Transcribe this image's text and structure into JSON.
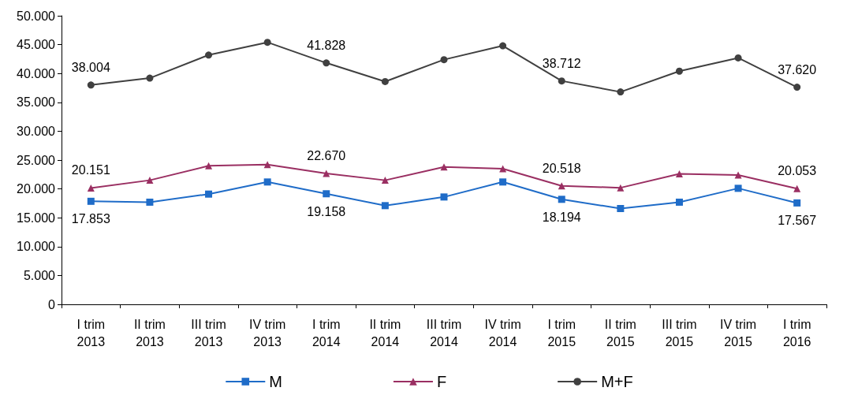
{
  "chart_data": {
    "type": "line",
    "categories": [
      "I trim\n2013",
      "II trim\n2013",
      "III trim\n2013",
      "IV trim\n2013",
      "I trim\n2014",
      "II trim\n2014",
      "III trim\n2014",
      "IV trim\n2014",
      "I trim\n2015",
      "II trim\n2015",
      "III trim\n2015",
      "IV trim\n2015",
      "I trim\n2016"
    ],
    "series": [
      {
        "name": "M",
        "color": "#1f6cc8",
        "marker": "square",
        "values": [
          17853,
          17700,
          19100,
          21200,
          19158,
          17100,
          18600,
          21200,
          18194,
          16600,
          17700,
          20100,
          17567
        ],
        "value_labels": [
          "17.853",
          null,
          null,
          null,
          "19.158",
          null,
          null,
          null,
          "18.194",
          null,
          null,
          null,
          "17.567"
        ]
      },
      {
        "name": "F",
        "color": "#9a2f62",
        "marker": "triangle",
        "values": [
          20151,
          21500,
          24000,
          24200,
          22670,
          21500,
          23800,
          23500,
          20518,
          20200,
          22600,
          22400,
          20053
        ],
        "value_labels": [
          "20.151",
          null,
          null,
          null,
          "22.670",
          null,
          null,
          null,
          "20.518",
          null,
          null,
          null,
          "20.053"
        ]
      },
      {
        "name": "M+F",
        "color": "#404040",
        "marker": "circle",
        "values": [
          38004,
          39200,
          43200,
          45400,
          41828,
          38600,
          42400,
          44800,
          38712,
          36800,
          40400,
          42700,
          37620
        ],
        "value_labels": [
          "38.004",
          null,
          null,
          null,
          "41.828",
          null,
          null,
          null,
          "38.712",
          null,
          null,
          null,
          "37.620"
        ]
      }
    ],
    "ylim": [
      0,
      50000
    ],
    "yticks": [
      {
        "value": 0,
        "label": "0"
      },
      {
        "value": 5000,
        "label": "5.000"
      },
      {
        "value": 10000,
        "label": "10.000"
      },
      {
        "value": 15000,
        "label": "15.000"
      },
      {
        "value": 20000,
        "label": "20.000"
      },
      {
        "value": 25000,
        "label": "25.000"
      },
      {
        "value": 30000,
        "label": "30.000"
      },
      {
        "value": 35000,
        "label": "35.000"
      },
      {
        "value": 40000,
        "label": "40.000"
      },
      {
        "value": 45000,
        "label": "45.000"
      },
      {
        "value": 50000,
        "label": "50.000"
      }
    ],
    "grid": false,
    "legend": "bottom"
  }
}
